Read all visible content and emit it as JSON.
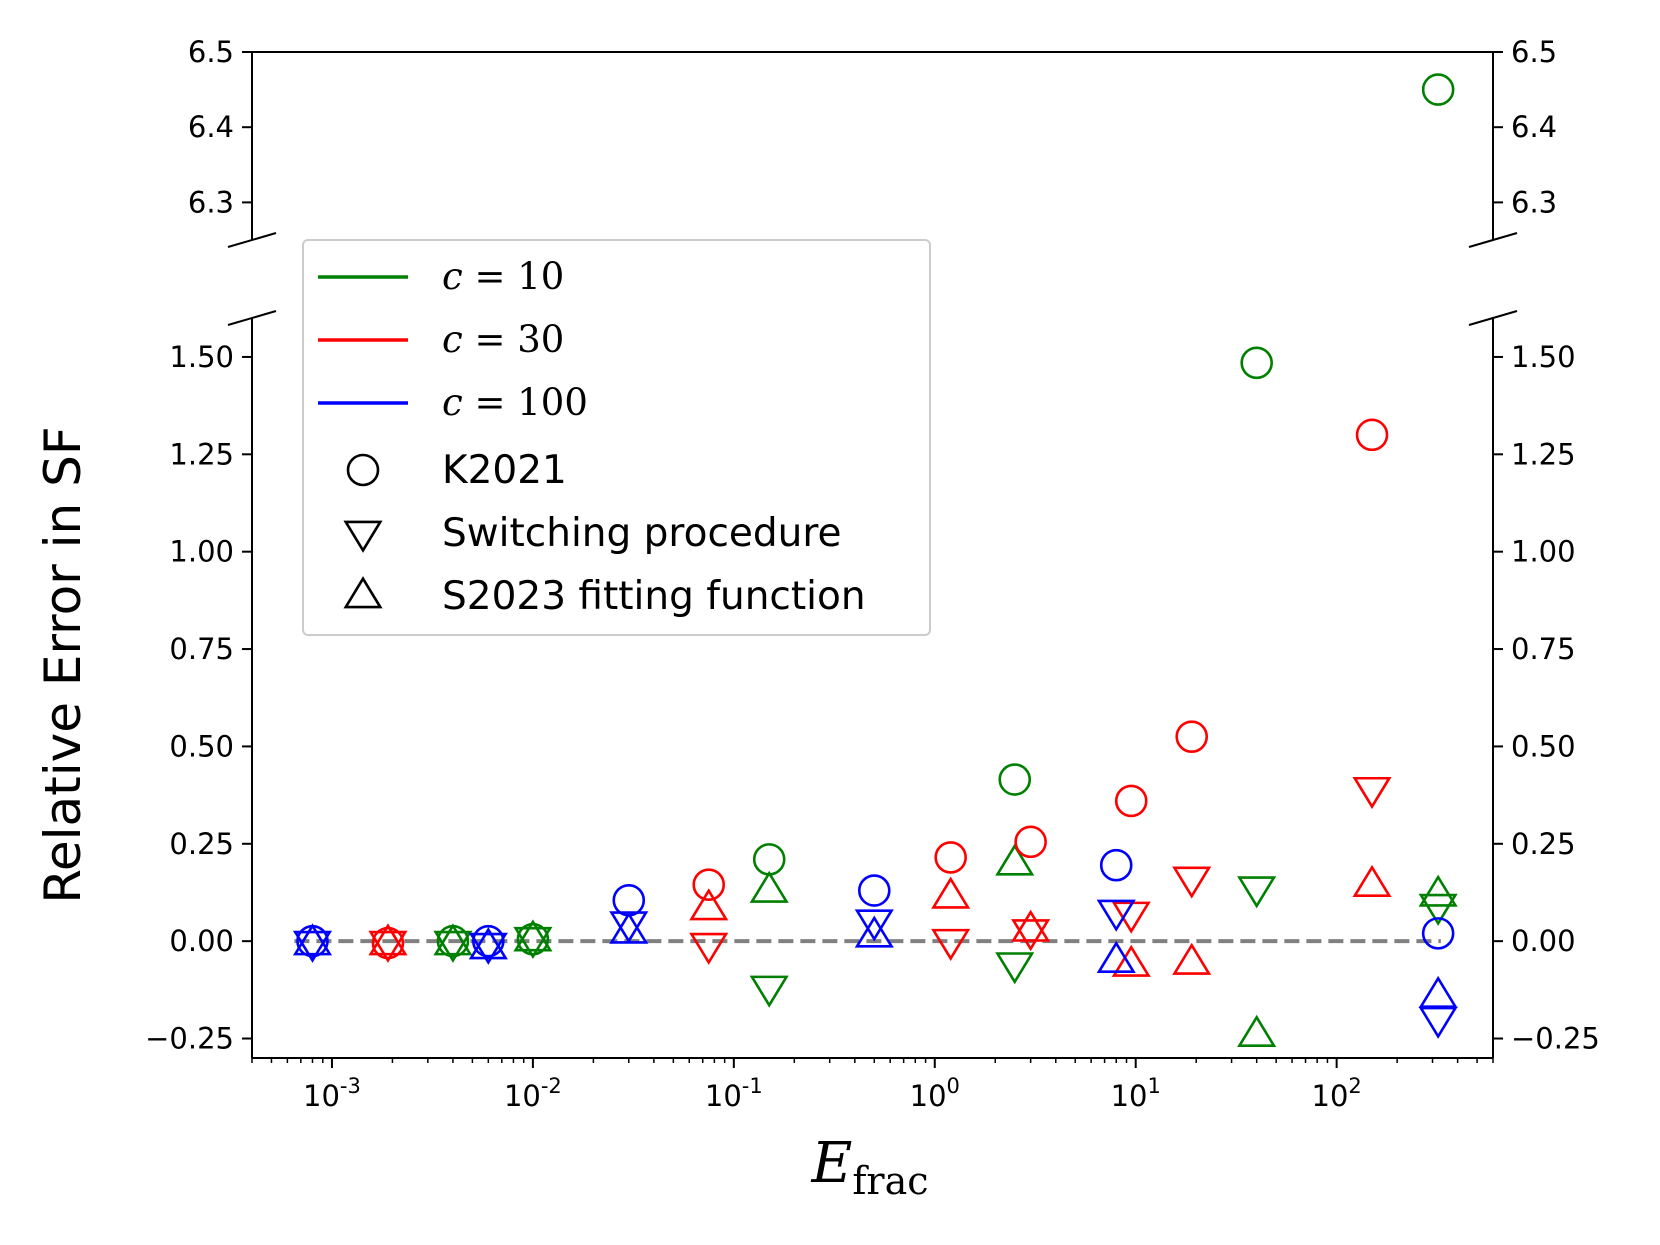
{
  "chart_data": {
    "type": "scatter",
    "title": "",
    "xlabel": "E_frac",
    "xlabel_base": "E",
    "xlabel_sub": "frac",
    "ylabel": "Relative Error in SF",
    "xscale": "log",
    "xlim": [
      0.0004,
      600
    ],
    "x_ticks": [
      {
        "value": 0.001,
        "base": "10",
        "exp": "-3"
      },
      {
        "value": 0.01,
        "base": "10",
        "exp": "-2"
      },
      {
        "value": 0.1,
        "base": "10",
        "exp": "-1"
      },
      {
        "value": 1,
        "base": "10",
        "exp": "0"
      },
      {
        "value": 10,
        "base": "10",
        "exp": "1"
      },
      {
        "value": 100,
        "base": "10",
        "exp": "2"
      }
    ],
    "top_panel": {
      "ylim": [
        6.25,
        6.5
      ],
      "y_ticks": [
        {
          "value": 6.3,
          "label": "6.3"
        },
        {
          "value": 6.4,
          "label": "6.4"
        },
        {
          "value": 6.5,
          "label": "6.5"
        }
      ]
    },
    "bottom_panel": {
      "ylim": [
        -0.3,
        1.6
      ],
      "y_ticks": [
        {
          "value": -0.25,
          "label": "−0.25"
        },
        {
          "value": 0.0,
          "label": "0.00"
        },
        {
          "value": 0.25,
          "label": "0.25"
        },
        {
          "value": 0.5,
          "label": "0.50"
        },
        {
          "value": 0.75,
          "label": "0.75"
        },
        {
          "value": 1.0,
          "label": "1.00"
        },
        {
          "value": 1.25,
          "label": "1.25"
        },
        {
          "value": 1.5,
          "label": "1.50"
        }
      ]
    },
    "reference_line": {
      "y": 0,
      "style": "dashed",
      "color": "#808080"
    },
    "colors": {
      "c=10": "#008000",
      "c=30": "#ff0000",
      "c=100": "#0000ff"
    },
    "legend": {
      "placement": "upper-left",
      "color_entries": [
        {
          "label": "c = 10",
          "var": "c",
          "value": "10",
          "color": "#008000"
        },
        {
          "label": "c = 30",
          "var": "c",
          "value": "30",
          "color": "#ff0000"
        },
        {
          "label": "c = 100",
          "var": "c",
          "value": "100",
          "color": "#0000ff"
        }
      ],
      "marker_entries": [
        {
          "label": "K2021",
          "marker": "circle"
        },
        {
          "label": "Switching procedure",
          "marker": "triangle-down"
        },
        {
          "label": "S2023 fitting function",
          "marker": "triangle-up"
        }
      ]
    },
    "series": [
      {
        "name": "c=10 K2021",
        "color": "#008000",
        "marker": "circle",
        "x": [
          0.004,
          0.01,
          0.15,
          2.5,
          40,
          320
        ],
        "y": [
          0.0,
          0.005,
          0.21,
          0.415,
          1.485,
          6.45
        ]
      },
      {
        "name": "c=10 Switching procedure",
        "color": "#008000",
        "marker": "triangle-down",
        "x": [
          0.004,
          0.01,
          0.15,
          2.5,
          40,
          320
        ],
        "y": [
          -0.005,
          0.005,
          -0.12,
          -0.06,
          0.135,
          0.09
        ]
      },
      {
        "name": "c=10 S2023 fitting function",
        "color": "#008000",
        "marker": "triangle-up",
        "x": [
          0.004,
          0.01,
          0.15,
          2.5,
          40,
          320
        ],
        "y": [
          -0.005,
          0.005,
          0.13,
          0.2,
          -0.24,
          0.12
        ]
      },
      {
        "name": "c=30 K2021",
        "color": "#ff0000",
        "marker": "circle",
        "x": [
          0.0019,
          0.075,
          1.2,
          3.0,
          9.5,
          19,
          150
        ],
        "y": [
          -0.005,
          0.145,
          0.215,
          0.255,
          0.36,
          0.525,
          1.3
        ]
      },
      {
        "name": "c=30 Switching procedure",
        "color": "#ff0000",
        "marker": "triangle-down",
        "x": [
          0.0019,
          0.075,
          1.2,
          3.0,
          9.5,
          19,
          150
        ],
        "y": [
          -0.005,
          -0.01,
          0.0,
          0.025,
          0.07,
          0.16,
          0.39
        ]
      },
      {
        "name": "c=30 S2023 fitting function",
        "color": "#ff0000",
        "marker": "triangle-up",
        "x": [
          0.0019,
          0.075,
          1.2,
          3.0,
          9.5,
          19,
          150
        ],
        "y": [
          -0.005,
          0.085,
          0.115,
          0.03,
          -0.06,
          -0.055,
          0.145
        ]
      },
      {
        "name": "c=100 K2021",
        "color": "#0000ff",
        "marker": "circle",
        "x": [
          0.0008,
          0.006,
          0.03,
          0.5,
          8,
          320
        ],
        "y": [
          0.0,
          0.0,
          0.105,
          0.13,
          0.195,
          0.02
        ]
      },
      {
        "name": "c=100 Switching procedure",
        "color": "#0000ff",
        "marker": "triangle-down",
        "x": [
          0.0008,
          0.006,
          0.03,
          0.5,
          8,
          320
        ],
        "y": [
          -0.005,
          -0.01,
          0.045,
          0.05,
          0.075,
          -0.2
        ]
      },
      {
        "name": "c=100 S2023 fitting function",
        "color": "#0000ff",
        "marker": "triangle-up",
        "x": [
          0.0008,
          0.006,
          0.03,
          0.5,
          8,
          320
        ],
        "y": [
          -0.005,
          -0.015,
          0.025,
          0.015,
          -0.05,
          -0.14
        ]
      }
    ]
  }
}
